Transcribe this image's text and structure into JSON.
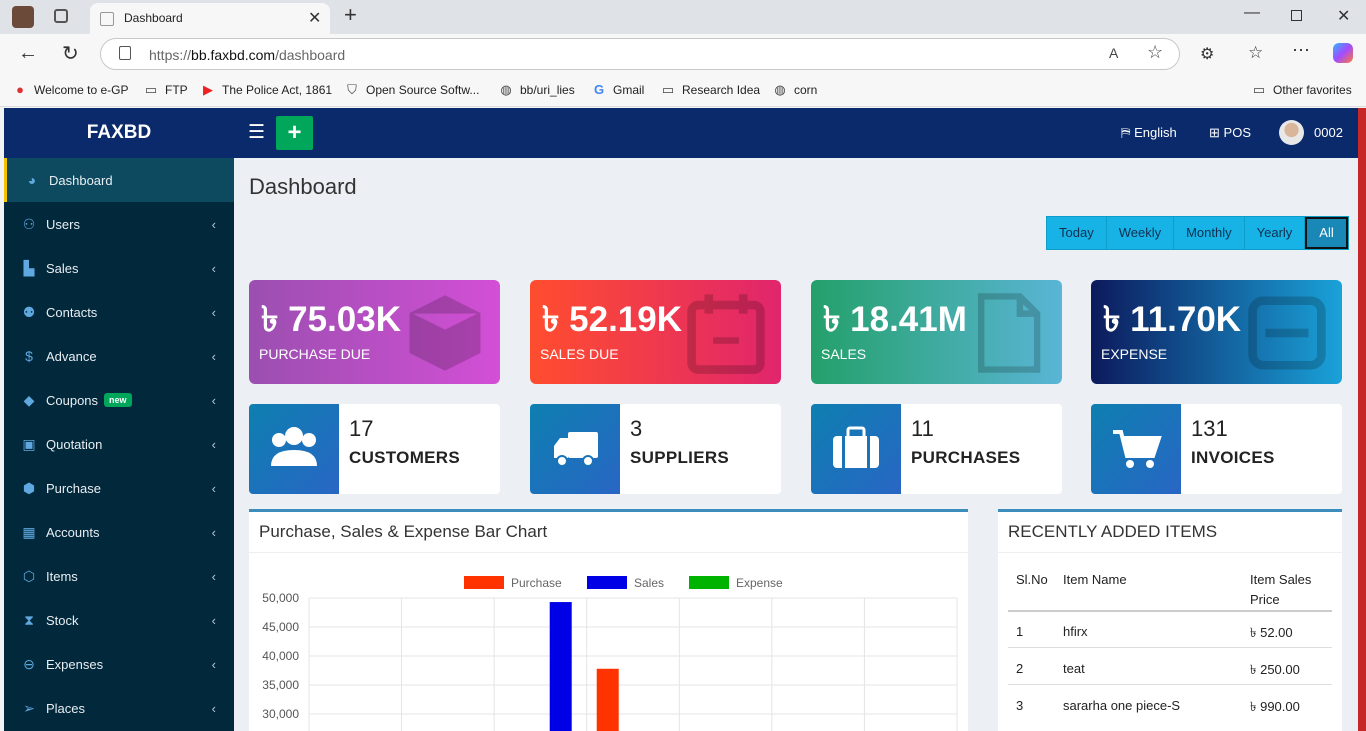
{
  "browser": {
    "tab_title": "Dashboard",
    "url_prefix": "https://",
    "url_host": "bb.faxbd.com",
    "url_path": "/dashboard",
    "favorites": [
      "Welcome to e-GP",
      "FTP",
      "The Police Act, 1861",
      "Open Source Softw...",
      "bb/uri_lies",
      "Gmail",
      "Research Idea",
      "corn"
    ],
    "other_favorites": "Other favorites"
  },
  "app": {
    "brand": "FAXBD",
    "language": "English",
    "pos": "POS",
    "user": "0002",
    "page_title": "Dashboard"
  },
  "sidebar": [
    {
      "label": "Dashboard",
      "icon": "dashboard-icon",
      "active": true
    },
    {
      "label": "Users",
      "icon": "user-plus-icon"
    },
    {
      "label": "Sales",
      "icon": "cart-icon"
    },
    {
      "label": "Contacts",
      "icon": "users-icon"
    },
    {
      "label": "Advance",
      "icon": "dollar-icon"
    },
    {
      "label": "Coupons",
      "icon": "tag-icon",
      "badge": "new"
    },
    {
      "label": "Quotation",
      "icon": "calendar-plus-icon"
    },
    {
      "label": "Purchase",
      "icon": "cube-icon"
    },
    {
      "label": "Accounts",
      "icon": "grid-icon"
    },
    {
      "label": "Items",
      "icon": "cubes-icon"
    },
    {
      "label": "Stock",
      "icon": "hourglass-icon"
    },
    {
      "label": "Expenses",
      "icon": "minus-circle-icon"
    },
    {
      "label": "Places",
      "icon": "paper-plane-icon"
    }
  ],
  "filters": [
    "Today",
    "Weekly",
    "Monthly",
    "Yearly",
    "All"
  ],
  "active_filter": "All",
  "stats": [
    {
      "value": "৳ 75.03K",
      "label": "PURCHASE DUE",
      "icon": "cube-icon"
    },
    {
      "value": "৳ 52.19K",
      "label": "SALES DUE",
      "icon": "calendar-icon"
    },
    {
      "value": "৳ 18.41M",
      "label": "SALES",
      "icon": "file-icon"
    },
    {
      "value": "৳ 11.70K",
      "label": "EXPENSE",
      "icon": "minus-square-icon"
    }
  ],
  "counts": [
    {
      "value": "17",
      "label": "CUSTOMERS",
      "icon": "users-icon"
    },
    {
      "value": "3",
      "label": "SUPPLIERS",
      "icon": "truck-icon"
    },
    {
      "value": "11",
      "label": "PURCHASES",
      "icon": "briefcase-icon"
    },
    {
      "value": "131",
      "label": "INVOICES",
      "icon": "cart-icon"
    }
  ],
  "chart_panel": {
    "title": "Purchase, Sales & Expense Bar Chart"
  },
  "chart_data": {
    "type": "bar",
    "title": "Purchase, Sales & Expense Bar Chart",
    "series": [
      {
        "name": "Purchase",
        "color": "#ff3300",
        "values": [
          0,
          0,
          0,
          37800,
          0,
          0,
          0
        ]
      },
      {
        "name": "Sales",
        "color": "#0000e6",
        "values": [
          0,
          0,
          49300,
          0,
          0,
          0,
          0
        ]
      },
      {
        "name": "Expense",
        "color": "#00b300",
        "values": [
          0,
          0,
          0,
          0,
          0,
          0,
          0
        ]
      }
    ],
    "y_ticks": [
      "50,000",
      "45,000",
      "40,000",
      "35,000",
      "30,000"
    ],
    "ylim_visible": [
      27500,
      50000
    ],
    "legend": "top"
  },
  "recent_items": {
    "title": "RECENTLY ADDED ITEMS",
    "headers": [
      "Sl.No",
      "Item Name",
      "Item Sales Price"
    ],
    "header_price_line1": "Item Sales",
    "header_price_line2": "Price",
    "rows": [
      {
        "sl": "1",
        "name": "hfirx",
        "price": "৳ 52.00"
      },
      {
        "sl": "2",
        "name": "teat",
        "price": "৳ 250.00"
      },
      {
        "sl": "3",
        "name": "sararha one piece-S",
        "price": "৳ 990.00"
      }
    ]
  }
}
